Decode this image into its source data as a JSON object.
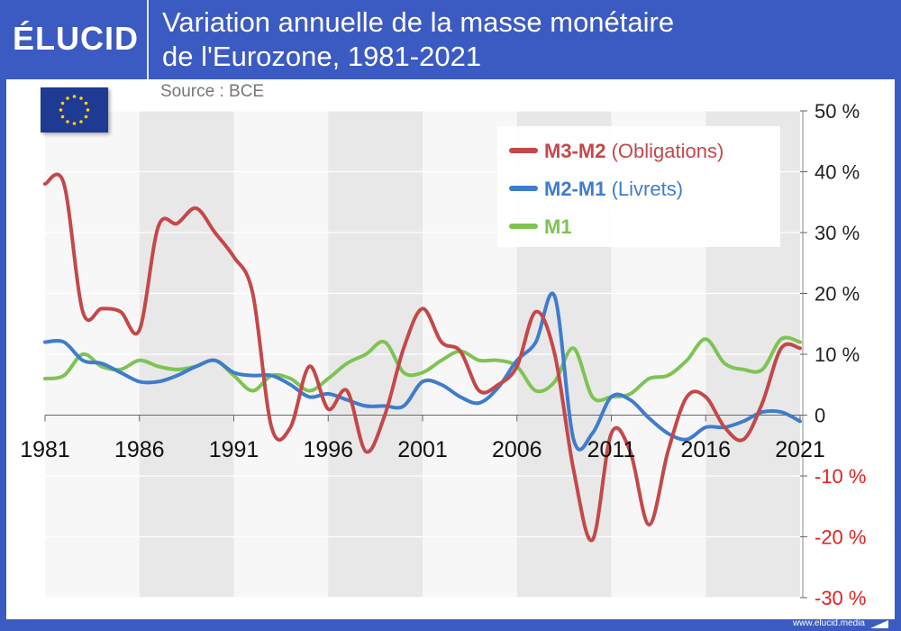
{
  "brand": {
    "logo_text": "ÉLUCID",
    "footer_url": "www.elucid.media"
  },
  "header": {
    "title_line1": "Variation annuelle de la masse monétaire",
    "title_line2": "de l'Eurozone, 1981-2021"
  },
  "source": "Source : BCE",
  "flag_icon": "eu-flag-icon",
  "colors": {
    "header_bg": "#3c5bc2",
    "m3m2": "#c4484a",
    "m2m1": "#3f7ccc",
    "m1": "#7ec354",
    "negative_tick": "#e32020"
  },
  "chart_data": {
    "type": "line",
    "title": "Variation annuelle de la masse monétaire de l'Eurozone, 1981-2021",
    "xlim": [
      1981,
      2021
    ],
    "ylim": [
      -30,
      50
    ],
    "x_ticks": [
      1981,
      1986,
      1991,
      1996,
      2001,
      2006,
      2011,
      2016,
      2021
    ],
    "x_tick_labels": [
      "1981",
      "1986",
      "1991",
      "1996",
      "2001",
      "2006",
      "2011",
      "2016",
      "2021"
    ],
    "y_ticks": [
      50,
      40,
      30,
      20,
      10,
      0,
      -10,
      -20,
      -30
    ],
    "y_tick_labels": [
      "50 %",
      "40 %",
      "30 %",
      "20 %",
      "10 %",
      "0",
      "-10 %",
      "-20 %",
      "-30 %"
    ],
    "grid": true,
    "legend_position": "top-right",
    "series": [
      {
        "name": "M3-M2",
        "name_suffix": "(Obligations)",
        "color": "#c4484a",
        "x": [
          1981,
          1982,
          1983,
          1984,
          1985,
          1986,
          1987,
          1988,
          1989,
          1990,
          1991,
          1992,
          1993,
          1994,
          1995,
          1996,
          1997,
          1998,
          1999,
          2000,
          2001,
          2002,
          2003,
          2004,
          2005,
          2006,
          2007,
          2008,
          2009,
          2010,
          2011,
          2012,
          2013,
          2014,
          2015,
          2016,
          2017,
          2018,
          2019,
          2020,
          2021
        ],
        "values": [
          38,
          38,
          17,
          17.5,
          17,
          14,
          31,
          31.5,
          34,
          30,
          26,
          20,
          -2,
          -2,
          8,
          1,
          4,
          -6,
          0,
          11,
          17.5,
          12,
          10.5,
          4,
          5,
          8,
          17,
          10,
          -9,
          -20.5,
          -3,
          -6,
          -18,
          -6,
          3,
          3,
          -2,
          -4,
          2,
          11,
          11
        ]
      },
      {
        "name": "M2-M1",
        "name_suffix": "(Livrets)",
        "color": "#3f7ccc",
        "x": [
          1981,
          1982,
          1983,
          1984,
          1985,
          1986,
          1987,
          1988,
          1989,
          1990,
          1991,
          1992,
          1993,
          1994,
          1995,
          1996,
          1997,
          1998,
          1999,
          2000,
          2001,
          2002,
          2003,
          2004,
          2005,
          2006,
          2007,
          2008,
          2009,
          2010,
          2011,
          2012,
          2013,
          2014,
          2015,
          2016,
          2017,
          2018,
          2019,
          2020,
          2021
        ],
        "values": [
          12,
          12,
          9,
          8.5,
          7,
          5.5,
          5.5,
          6.5,
          8,
          9,
          7,
          6.5,
          6.5,
          5,
          3,
          3.5,
          2.5,
          1.5,
          1.5,
          1.5,
          5.5,
          5,
          3,
          2,
          4.5,
          9,
          12,
          19.5,
          -4,
          -3,
          3,
          2.5,
          -0.5,
          -3,
          -4,
          -2,
          -2,
          -1,
          0.5,
          0.5,
          -1
        ]
      },
      {
        "name": "M1",
        "name_suffix": "",
        "color": "#7ec354",
        "x": [
          1981,
          1982,
          1983,
          1984,
          1985,
          1986,
          1987,
          1988,
          1989,
          1990,
          1991,
          1992,
          1993,
          1994,
          1995,
          1996,
          1997,
          1998,
          1999,
          2000,
          2001,
          2002,
          2003,
          2004,
          2005,
          2006,
          2007,
          2008,
          2009,
          2010,
          2011,
          2012,
          2013,
          2014,
          2015,
          2016,
          2017,
          2018,
          2019,
          2020,
          2021
        ],
        "values": [
          6,
          6.5,
          10,
          8,
          7.5,
          9,
          8,
          7.5,
          8,
          9,
          6.5,
          4,
          6.5,
          6,
          4,
          6,
          8.5,
          10,
          12,
          7,
          7,
          9,
          10.5,
          9,
          9,
          8,
          4,
          5.5,
          11,
          3,
          3,
          3.5,
          6,
          6.5,
          9,
          12.5,
          8.5,
          7.5,
          7.5,
          12.5,
          12
        ]
      }
    ]
  }
}
